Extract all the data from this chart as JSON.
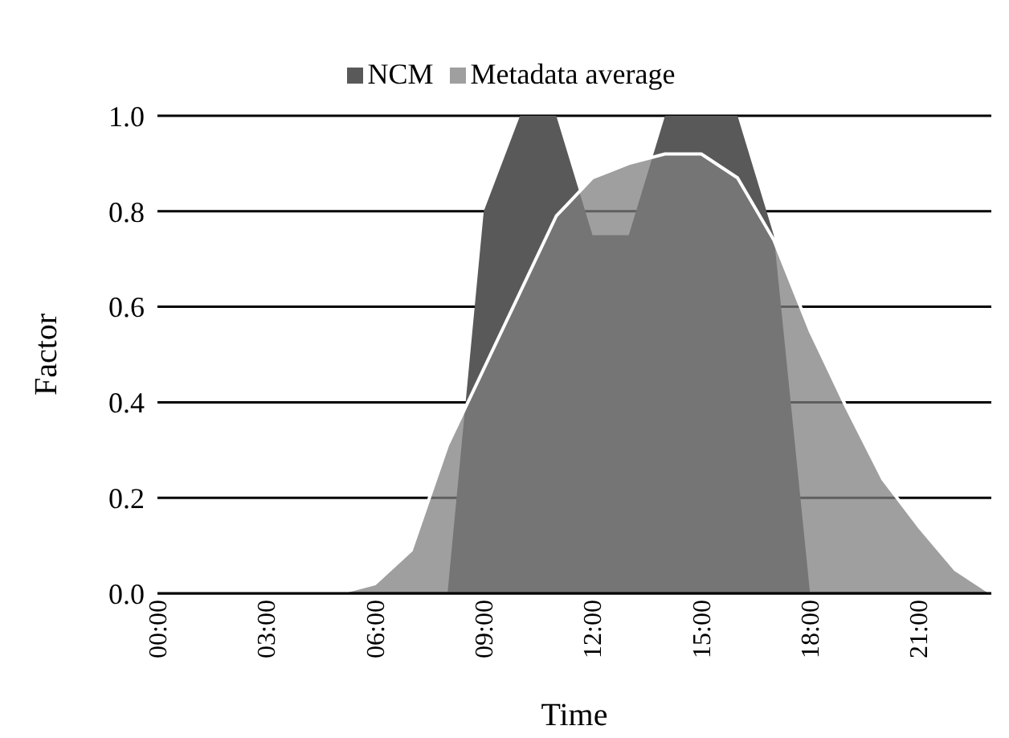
{
  "chart_data": {
    "type": "area",
    "xlabel": "Time",
    "ylabel": "Factor",
    "categories": [
      "00:00",
      null,
      null,
      "03:00",
      null,
      null,
      "06:00",
      null,
      null,
      "09:00",
      null,
      null,
      "12:00",
      null,
      null,
      "15:00",
      null,
      null,
      "18:00",
      null,
      null,
      "21:00",
      null,
      null
    ],
    "series": [
      {
        "name": "NCM",
        "color": "#595959",
        "values": [
          0,
          0,
          0,
          0,
          0,
          0,
          0,
          0,
          0,
          0.8,
          1.0,
          1.0,
          0.75,
          0.75,
          1.0,
          1.0,
          1.0,
          0.75,
          0,
          0,
          0,
          0,
          0,
          0
        ]
      },
      {
        "name": "Metadata average",
        "color": "#9f9f9f",
        "values": [
          0,
          0,
          0,
          0,
          0,
          0,
          0.02,
          0.09,
          0.31,
          0.47,
          0.63,
          0.79,
          0.87,
          0.9,
          0.92,
          0.92,
          0.87,
          0.74,
          0.55,
          0.39,
          0.24,
          0.14,
          0.05,
          0
        ]
      }
    ],
    "ylim": [
      0,
      1
    ],
    "yticks": [
      {
        "value": 0,
        "label": "0.0"
      },
      {
        "value": 0.2,
        "label": "0.2"
      },
      {
        "value": 0.4,
        "label": "0.4"
      },
      {
        "value": 0.6,
        "label": "0.6"
      },
      {
        "value": 0.8,
        "label": "0.8"
      },
      {
        "value": 1,
        "label": "1.0"
      }
    ],
    "grid": "y",
    "legend": "top"
  }
}
